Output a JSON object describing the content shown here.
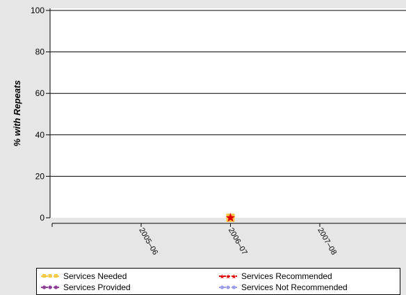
{
  "chart_data": {
    "type": "line",
    "ylabel": "% with Repeats",
    "xlabel": "",
    "ylim": [
      0,
      100
    ],
    "yticks": [
      "0",
      "20",
      "40",
      "60",
      "80",
      "100"
    ],
    "categories": [
      "2005–06",
      "2006–07",
      "2007–08"
    ],
    "grid": true,
    "legend_position": "bottom",
    "series": [
      {
        "name": "Services Needed",
        "color": "#f7c948",
        "marker": "square",
        "values": [
          null,
          0,
          null
        ]
      },
      {
        "name": "Services Recommended",
        "color": "#e00000",
        "marker": "star",
        "values": [
          null,
          0,
          null
        ]
      },
      {
        "name": "Services Provided",
        "color": "#8e3f96",
        "marker": "circle",
        "values": [
          null,
          null,
          null
        ]
      },
      {
        "name": "Services Not Recommended",
        "color": "#9d9dea",
        "marker": "circle",
        "values": [
          null,
          null,
          null
        ]
      }
    ]
  }
}
